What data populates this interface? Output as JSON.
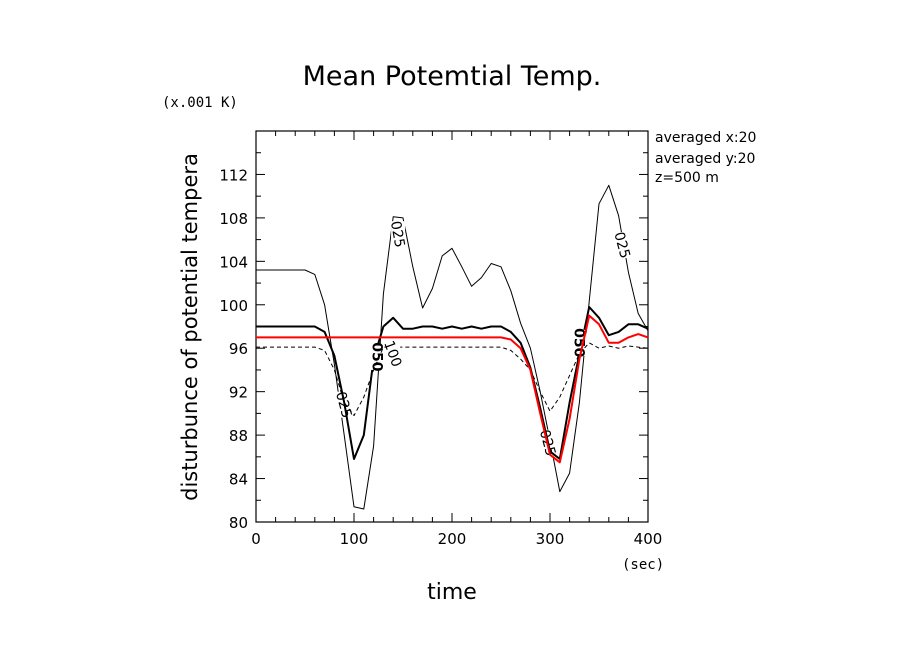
{
  "chart_data": {
    "type": "line",
    "title": "Mean Potemtial Temp.",
    "xlabel": "time",
    "ylabel": "disturbunce of potential tempera",
    "x_unit": "(sec)",
    "y_unit": "(x.001 K)",
    "xlim": [
      0,
      400
    ],
    "ylim": [
      80,
      116
    ],
    "x_ticks": [
      "0",
      "100",
      "200",
      "300",
      "400"
    ],
    "y_ticks": [
      "80",
      "84",
      "88",
      "92",
      "96",
      "100",
      "104",
      "108",
      "112"
    ],
    "grid": false,
    "annotations": [
      "averaged   x:20",
      "averaged   y:20",
      "z=500 m"
    ],
    "series": [
      {
        "label": "025",
        "color": "#000000",
        "style": "thin",
        "x": [
          0,
          50,
          60,
          70,
          80,
          90,
          100,
          110,
          120,
          130,
          140,
          150,
          160,
          170,
          180,
          190,
          200,
          210,
          220,
          230,
          240,
          250,
          260,
          270,
          280,
          290,
          300,
          310,
          320,
          330,
          340,
          350,
          360,
          370,
          380,
          390,
          400
        ],
        "y": [
          103.2,
          103.2,
          102.8,
          100,
          94.5,
          88,
          81.4,
          81.2,
          87,
          101,
          108.1,
          108,
          103.5,
          99.7,
          101.5,
          104.5,
          105.2,
          103.5,
          101.7,
          102.5,
          103.8,
          103.5,
          101.3,
          98.3,
          96,
          92,
          87.5,
          82.8,
          84.5,
          91,
          100.3,
          109.3,
          111,
          108.2,
          103,
          99.2,
          97.6
        ],
        "contour_labels": [
          {
            "text": "025",
            "x": 145,
            "y": 106.5,
            "angle": 80
          },
          {
            "text": "025",
            "x": 90,
            "y": 90.8,
            "angle": 75
          },
          {
            "text": "025",
            "x": 298,
            "y": 87.3,
            "angle": 75
          },
          {
            "text": "025",
            "x": 374,
            "y": 105.5,
            "angle": 75
          }
        ]
      },
      {
        "label": "050",
        "color": "#000000",
        "style": "thick",
        "x": [
          0,
          50,
          60,
          70,
          80,
          90,
          100,
          110,
          120,
          130,
          140,
          150,
          160,
          170,
          180,
          190,
          200,
          210,
          220,
          230,
          240,
          250,
          260,
          270,
          280,
          290,
          300,
          310,
          320,
          330,
          340,
          350,
          360,
          370,
          380,
          390,
          400
        ],
        "y": [
          98,
          98,
          98,
          97.5,
          95.3,
          91,
          85.8,
          88,
          95,
          98,
          98.8,
          97.8,
          97.8,
          98,
          98,
          97.8,
          98,
          97.8,
          98,
          97.8,
          98,
          98,
          97.5,
          96.5,
          94.2,
          90.5,
          86.5,
          85.8,
          91,
          95.5,
          99.8,
          98.8,
          97.2,
          97.5,
          98.2,
          98.2,
          97.8
        ],
        "contour_labels": [
          {
            "text": "050",
            "x": 124,
            "y": 95.2,
            "angle": 90
          },
          {
            "text": "050",
            "x": 330,
            "y": 96.5,
            "angle": 90
          }
        ]
      },
      {
        "label": "100",
        "color": "#000000",
        "style": "dashed",
        "x": [
          0,
          60,
          70,
          80,
          90,
          100,
          110,
          120,
          130,
          250,
          260,
          270,
          280,
          290,
          300,
          310,
          320,
          330,
          340,
          350,
          360,
          370,
          380,
          390,
          400
        ],
        "y": [
          96.1,
          96.1,
          95.8,
          94,
          91,
          89.8,
          91.5,
          94,
          96.1,
          96.1,
          95.8,
          95,
          94,
          92,
          90.2,
          91.5,
          93.5,
          95.5,
          96.5,
          96,
          96.2,
          96,
          96.2,
          96.1,
          96
        ],
        "contour_labels": [
          {
            "text": "100",
            "x": 140,
            "y": 95.5,
            "angle": 70
          }
        ]
      },
      {
        "label": "",
        "color": "#ff0000",
        "style": "red",
        "x": [
          0,
          50,
          250,
          260,
          270,
          280,
          290,
          300,
          310,
          320,
          330,
          340,
          350,
          360,
          370,
          380,
          390,
          400
        ],
        "y": [
          97,
          97,
          97,
          96.8,
          96,
          94,
          90,
          86.2,
          85.5,
          89.5,
          95,
          99,
          98.2,
          96.5,
          96.5,
          97,
          97.3,
          97
        ],
        "contour_labels": []
      }
    ]
  }
}
